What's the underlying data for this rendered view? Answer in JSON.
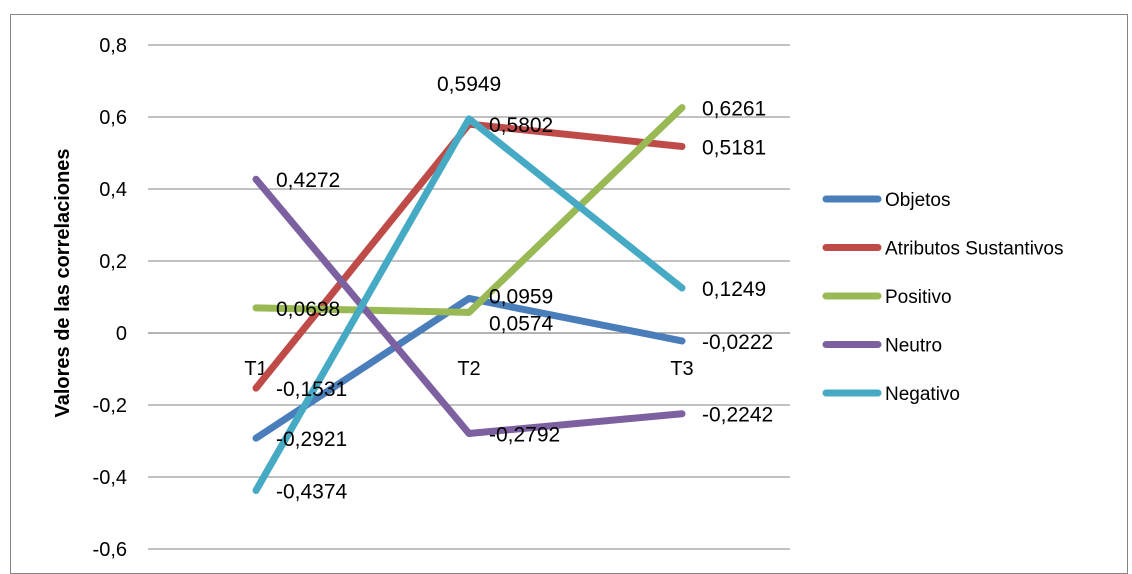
{
  "chart_data": {
    "type": "line",
    "title": "",
    "xlabel": "",
    "ylabel": "Valores de las correlaciones",
    "categories": [
      "T1",
      "T2",
      "T3"
    ],
    "ylim": [
      -0.6,
      0.8
    ],
    "yticks": [
      0.8,
      0.6,
      0.4,
      0.2,
      0,
      -0.2,
      -0.4,
      -0.6
    ],
    "ytick_labels": [
      "0,8",
      "0,6",
      "0,4",
      "0,2",
      "0",
      "-0,2",
      "-0,4",
      "-0,6"
    ],
    "grid": true,
    "legend_position": "right",
    "series": [
      {
        "name": "Objetos",
        "color": "#4a7ebb",
        "values": [
          -0.2921,
          0.0959,
          -0.0222
        ],
        "labels": [
          "-0,2921",
          "0,0959",
          "-0,0222"
        ]
      },
      {
        "name": "Atributos Sustantivos",
        "color": "#be4b48",
        "values": [
          -0.1531,
          0.5802,
          0.5181
        ],
        "labels": [
          "-0,1531",
          "0,5802",
          "0,5181"
        ]
      },
      {
        "name": "Positivo",
        "color": "#98b954",
        "values": [
          0.0698,
          0.0574,
          0.6261
        ],
        "labels": [
          "0,0698",
          "0,0574",
          "0,6261"
        ]
      },
      {
        "name": "Neutro",
        "color": "#7d60a0",
        "values": [
          0.4272,
          -0.2792,
          -0.2242
        ],
        "labels": [
          "0,4272",
          "-0,2792",
          "-0,2242"
        ]
      },
      {
        "name": "Negativo",
        "color": "#46aac5",
        "values": [
          -0.4374,
          0.5949,
          0.1249
        ],
        "labels": [
          "-0,4374",
          "0,5949",
          "0,1249"
        ]
      }
    ]
  }
}
